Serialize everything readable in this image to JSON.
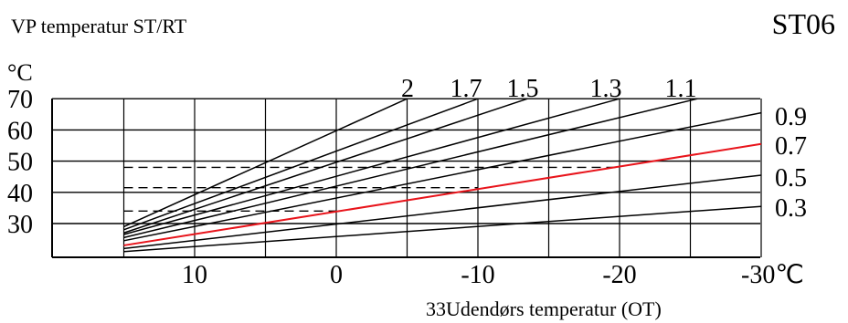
{
  "header": {
    "title": "VP temperatur ST/RT",
    "code": "ST06"
  },
  "chart_data": {
    "type": "line",
    "title": "VP temperatur ST/RT",
    "y_unit": "°C",
    "xlabel": "33Udendørs temperatur (OT)",
    "x_tick_labels": [
      "10",
      "0",
      "-10",
      "-20",
      "-30℃"
    ],
    "x_ticks": [
      10,
      0,
      -10,
      -20,
      -30
    ],
    "y_tick_labels": [
      "70",
      "60",
      "50",
      "40",
      "30"
    ],
    "y_ticks": [
      70,
      60,
      50,
      40,
      30
    ],
    "xlim": [
      15,
      -30
    ],
    "ylim": [
      20,
      70
    ],
    "grid": true,
    "highlight_color": "#e8141b",
    "line_color": "#000000",
    "series": [
      {
        "name": "2",
        "points": [
          [
            15,
            29
          ],
          [
            -5,
            70
          ]
        ]
      },
      {
        "name": "1.7",
        "points": [
          [
            15,
            28
          ],
          [
            -10,
            70
          ]
        ]
      },
      {
        "name": "1.5",
        "points": [
          [
            15,
            27
          ],
          [
            -13.5,
            70
          ]
        ]
      },
      {
        "name": "1.3",
        "points": [
          [
            15,
            26.5
          ],
          [
            -20,
            70
          ]
        ]
      },
      {
        "name": "1.1",
        "points": [
          [
            15,
            25.5
          ],
          [
            -25.5,
            70
          ]
        ]
      },
      {
        "name": "0.9",
        "points": [
          [
            15,
            24.5
          ],
          [
            -30,
            65.5
          ]
        ]
      },
      {
        "name": "0.7",
        "points": [
          [
            15,
            23
          ],
          [
            -30,
            55.5
          ]
        ],
        "highlight": true
      },
      {
        "name": "0.5",
        "points": [
          [
            15,
            22
          ],
          [
            -30,
            45.5
          ]
        ]
      },
      {
        "name": "0.3",
        "points": [
          [
            15,
            21
          ],
          [
            -30,
            35.5
          ]
        ]
      }
    ],
    "reference_lines": [
      {
        "x0": 15,
        "x1": -20,
        "y": 48
      },
      {
        "x0": 15,
        "x1": -10,
        "y": 41.5
      },
      {
        "x0": 15,
        "x1": 0,
        "y": 34
      }
    ],
    "top_labels": [
      "2",
      "1.7",
      "1.5",
      "1.3",
      "1.1"
    ],
    "right_labels": [
      "0.9",
      "0.7",
      "0.5",
      "0.3"
    ]
  }
}
